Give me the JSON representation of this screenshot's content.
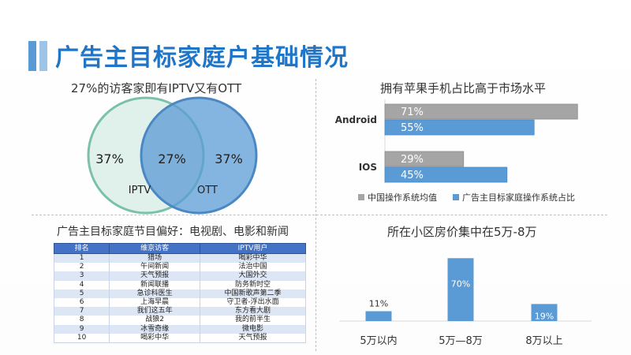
{
  "page_title": "广告主目标家庭户基础情况",
  "colors": {
    "title": "#1f75c7",
    "blue": "#5b9bd5",
    "gray": "#a5a5a5",
    "teal": "#7bc1a9",
    "table_header": "#4472c4"
  },
  "venn": {
    "title": "27%的访客家即有IPTV又有OTT",
    "left_value": "37%",
    "middle_value": "27%",
    "right_value": "37%",
    "left_label": "IPTV",
    "right_label": "OTT"
  },
  "table": {
    "title": "广告主目标家庭节目偏好：电视剧、电影和新闻",
    "headers": [
      "排名",
      "维京访客",
      "IPTV用户"
    ],
    "rows": [
      [
        "1",
        "猎场",
        "喝彩中华"
      ],
      [
        "2",
        "午间新闻",
        "法治中国"
      ],
      [
        "3",
        "天气预报",
        "大国外交"
      ],
      [
        "4",
        "新闻联播",
        "防务新时空"
      ],
      [
        "5",
        "急诊科医生",
        "中国新歌声第二季"
      ],
      [
        "6",
        "上海早晨",
        "守卫者-浮出水面"
      ],
      [
        "7",
        "我们这五年",
        "东方看大剧"
      ],
      [
        "8",
        "战狼2",
        "我的前半生"
      ],
      [
        "9",
        "冰雪奇缘",
        "微电影"
      ],
      [
        "10",
        "喝彩中华",
        "天气预报"
      ]
    ]
  },
  "chart_data": [
    {
      "type": "bar",
      "orientation": "horizontal",
      "title": "拥有苹果手机占比高于市场水平",
      "categories": [
        "Android",
        "IOS"
      ],
      "series": [
        {
          "name": "中国操作系统均值",
          "values": [
            71,
            29
          ],
          "labels": [
            "71%",
            "29%"
          ],
          "color": "#a5a5a5"
        },
        {
          "name": "广告主目标家庭操作系统占比",
          "values": [
            55,
            45
          ],
          "labels": [
            "55%",
            "45%"
          ],
          "color": "#5b9bd5"
        }
      ],
      "xlim": [
        0,
        75
      ],
      "legend": "bottom"
    },
    {
      "type": "bar",
      "orientation": "vertical",
      "title": "所在小区房价集中在5万-8万",
      "categories": [
        "5万以内",
        "5万—8万",
        "8万以上"
      ],
      "values": [
        11,
        70,
        19
      ],
      "labels": [
        "11%",
        "70%",
        "19%"
      ],
      "ylim": [
        0,
        72
      ],
      "color": "#5b9bd5"
    }
  ]
}
